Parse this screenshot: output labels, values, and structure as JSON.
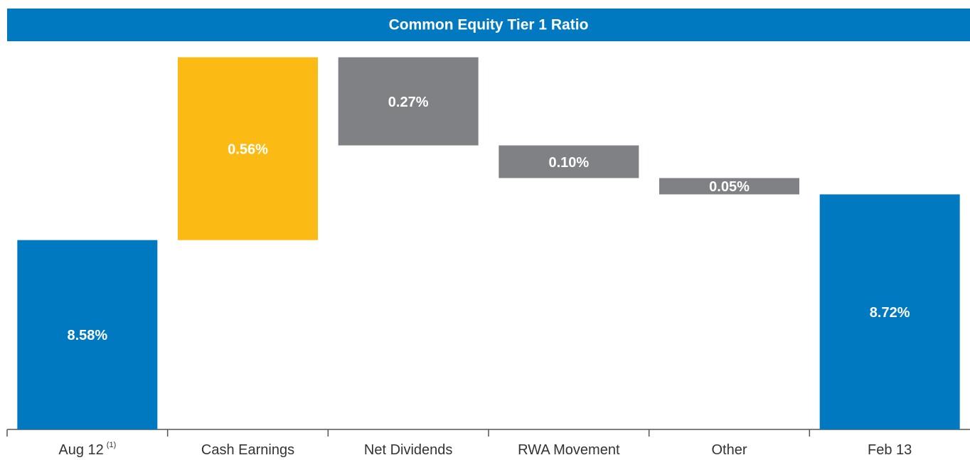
{
  "chart_data": {
    "type": "waterfall",
    "title": "Common Equity Tier 1 Ratio",
    "categories": [
      "Aug 12",
      "Cash Earnings",
      "Net Dividends",
      "RWA Movement",
      "Other",
      "Feb 13"
    ],
    "category_superscripts": [
      "(1)",
      null,
      null,
      null,
      null,
      null
    ],
    "values": [
      8.58,
      0.56,
      -0.27,
      -0.1,
      -0.05,
      8.72
    ],
    "value_labels": [
      "8.58%",
      "0.56%",
      "0.27%",
      "0.10%",
      "0.05%",
      "8.72%"
    ],
    "totals": [
      true,
      false,
      false,
      false,
      false,
      true
    ],
    "colors": [
      "#0079c1",
      "#fbbb14",
      "#808184",
      "#808184",
      "#808184",
      "#0079c1"
    ],
    "header_color": "#0079c1",
    "ylim": [
      8.0,
      9.2
    ]
  }
}
